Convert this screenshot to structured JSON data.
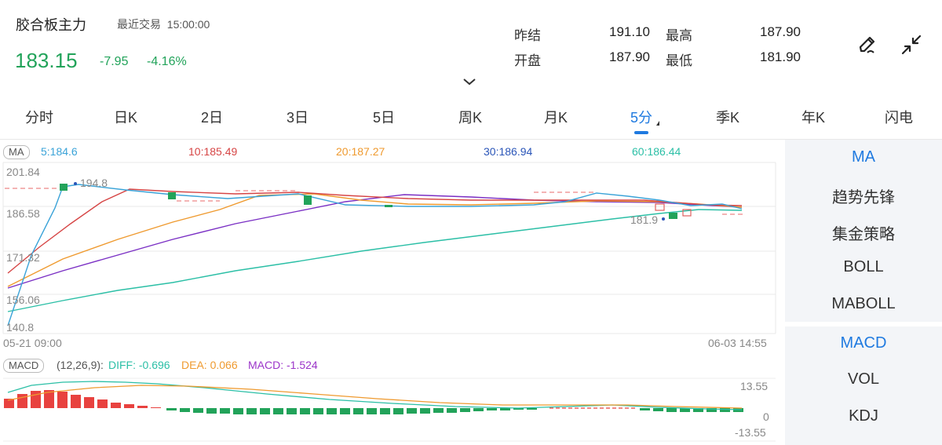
{
  "header": {
    "title": "胶合板主力",
    "recent_label": "最近交易",
    "time": "15:00:00",
    "price": "183.15",
    "change": "-7.95",
    "change_pct": "-4.16%",
    "stats": {
      "prev_settle_label": "昨结",
      "prev_settle": "191.10",
      "high_label": "最高",
      "high": "187.90",
      "open_label": "开盘",
      "open": "187.90",
      "low_label": "最低",
      "low": "181.90"
    },
    "icons": [
      "pen-icon",
      "collapse-icon",
      "chevron-down-icon"
    ]
  },
  "tabs": {
    "items": [
      "分时",
      "日K",
      "2日",
      "3日",
      "5日",
      "周K",
      "月K",
      "5分",
      "季K",
      "年K",
      "闪电"
    ],
    "active": "5分"
  },
  "ma_legend": {
    "tag": "MA",
    "ma5": "5:184.6",
    "ma10": "10:185.49",
    "ma20": "20:187.27",
    "ma30": "30:186.94",
    "ma60": "60:186.44"
  },
  "price_axis": [
    "201.84",
    "186.58",
    "171.32",
    "156.06",
    "140.8"
  ],
  "annotations": {
    "high_marker": "194.8",
    "low_marker": "181.9"
  },
  "time_axis": {
    "start": "05-21 09:00",
    "end": "06-03 14:55"
  },
  "macd_legend": {
    "tag": "MACD",
    "params": "(12,26,9):",
    "diff": "DIFF: -0.696",
    "dea": "DEA: 0.066",
    "macd": "MACD: -1.524"
  },
  "macd_axis": {
    "top": "13.55",
    "zero": "0",
    "bottom": "-13.55"
  },
  "panel": {
    "items": [
      "MA",
      "趋势先锋",
      "集金策略",
      "BOLL",
      "MABOLL",
      "MACD",
      "VOL",
      "KDJ"
    ],
    "active": [
      "MA",
      "MACD"
    ]
  },
  "colors": {
    "up": "#e8423f",
    "down": "#22a35a",
    "accent": "#1f7ae0",
    "ma5": "#3aa3d8",
    "ma10": "#d64545",
    "ma20": "#ef9a2f",
    "ma30": "#2a55b8",
    "ma60": "#2bbfa6"
  }
}
